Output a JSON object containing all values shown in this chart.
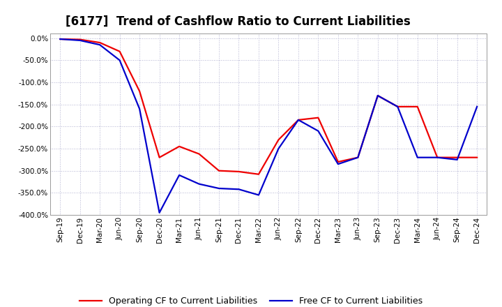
{
  "title": "[6177]  Trend of Cashflow Ratio to Current Liabilities",
  "x_labels": [
    "Sep-19",
    "Dec-19",
    "Mar-20",
    "Jun-20",
    "Sep-20",
    "Dec-20",
    "Mar-21",
    "Jun-21",
    "Sep-21",
    "Dec-21",
    "Mar-22",
    "Jun-22",
    "Sep-22",
    "Dec-22",
    "Mar-23",
    "Jun-23",
    "Sep-23",
    "Dec-23",
    "Mar-24",
    "Jun-24",
    "Sep-24",
    "Dec-24"
  ],
  "operating_cf": [
    -2,
    -3,
    -10,
    -30,
    -120,
    -270,
    -245,
    -262,
    -300,
    -302,
    -308,
    -230,
    -185,
    -180,
    -280,
    -270,
    -130,
    -155,
    -155,
    -270,
    -270,
    -270
  ],
  "free_cf": [
    -2,
    -5,
    -15,
    -50,
    -160,
    -395,
    -310,
    -330,
    -340,
    -342,
    -355,
    -250,
    -185,
    -210,
    -285,
    -270,
    -130,
    -155,
    -270,
    -270,
    -275,
    -155
  ],
  "operating_color": "#ee0000",
  "free_color": "#0000cc",
  "ylim": [
    -400,
    10
  ],
  "yticks": [
    0,
    -50,
    -100,
    -150,
    -200,
    -250,
    -300,
    -350,
    -400
  ],
  "bg_color": "#ffffff",
  "plot_bg_color": "#ffffff",
  "grid_color": "#aaaacc",
  "legend_operating": "Operating CF to Current Liabilities",
  "legend_free": "Free CF to Current Liabilities",
  "title_fontsize": 12,
  "tick_fontsize": 7.5,
  "legend_fontsize": 9,
  "line_width": 1.6
}
